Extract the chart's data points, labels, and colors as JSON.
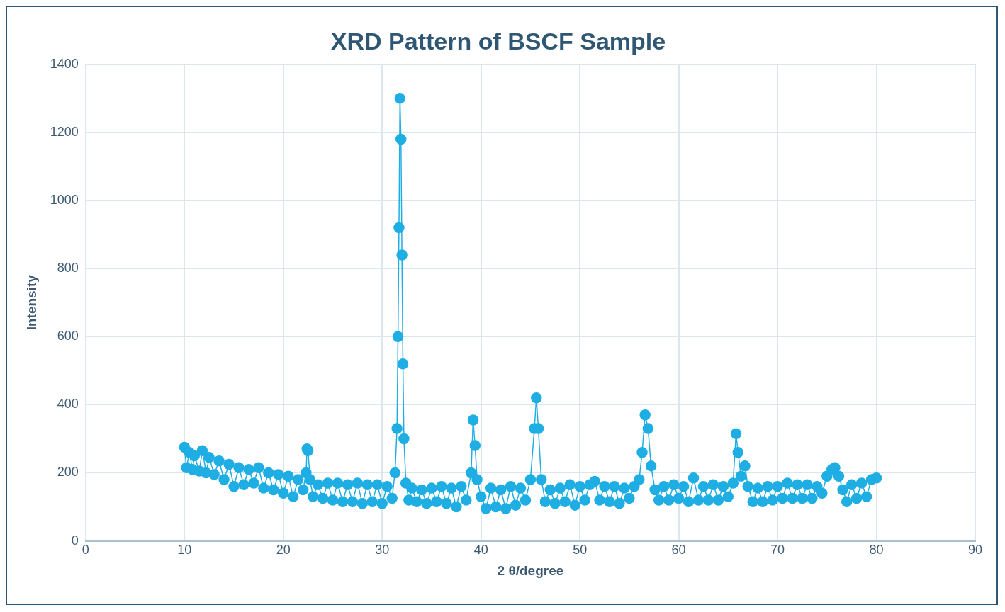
{
  "chart_data": {
    "type": "line",
    "title": "XRD Pattern of BSCF Sample",
    "xlabel": "2 θ/degree",
    "ylabel": "Intensity",
    "xlim": [
      0,
      90
    ],
    "xticks": [
      0,
      10,
      20,
      30,
      40,
      50,
      60,
      70,
      80,
      90
    ],
    "ylim": [
      0,
      1400
    ],
    "yticks": [
      0,
      200,
      400,
      600,
      800,
      1000,
      1200,
      1400
    ],
    "grid": true,
    "legend": false,
    "marker": "circle",
    "line_style": "solid",
    "x": [
      10,
      10.2,
      10.5,
      10.8,
      11,
      11.5,
      11.8,
      12.2,
      12.5,
      13,
      13.5,
      14,
      14.5,
      15,
      15.5,
      16,
      16.5,
      17,
      17.5,
      18,
      18.5,
      19,
      19.5,
      20,
      20.5,
      21,
      21.5,
      22,
      22.3,
      22.4,
      22.5,
      22.7,
      23,
      23.5,
      24,
      24.5,
      25,
      25.5,
      26,
      26.5,
      27,
      27.5,
      28,
      28.5,
      29,
      29.5,
      30,
      30.5,
      31,
      31.3,
      31.5,
      31.6,
      31.7,
      31.8,
      31.9,
      32,
      32.1,
      32.2,
      32.4,
      32.7,
      33,
      33.5,
      34,
      34.5,
      35,
      35.5,
      36,
      36.5,
      37,
      37.5,
      38,
      38.5,
      39,
      39.2,
      39.4,
      39.6,
      40,
      40.5,
      41,
      41.5,
      42,
      42.5,
      43,
      43.5,
      44,
      44.5,
      45,
      45.4,
      45.6,
      45.8,
      46.1,
      46.5,
      47,
      47.5,
      48,
      48.5,
      49,
      49.5,
      50,
      50.5,
      51,
      51.5,
      52,
      52.5,
      53,
      53.5,
      54,
      54.5,
      55,
      55.5,
      56,
      56.3,
      56.6,
      56.9,
      57.2,
      57.6,
      58,
      58.5,
      59,
      59.5,
      60,
      60.5,
      61,
      61.5,
      62,
      62.5,
      63,
      63.5,
      64,
      64.5,
      65,
      65.5,
      65.8,
      66,
      66.3,
      66.7,
      67,
      67.5,
      68,
      68.5,
      69,
      69.5,
      70,
      70.5,
      71,
      71.5,
      72,
      72.5,
      73,
      73.5,
      74,
      74.5,
      75,
      75.5,
      75.8,
      76.2,
      76.6,
      77,
      77.5,
      78,
      78.5,
      79,
      79.5,
      80
    ],
    "series": [
      {
        "color": "#1eaee4",
        "values": [
          275,
          215,
          260,
          210,
          250,
          205,
          265,
          200,
          245,
          195,
          235,
          180,
          225,
          160,
          215,
          165,
          210,
          170,
          215,
          155,
          200,
          150,
          195,
          140,
          190,
          130,
          180,
          150,
          200,
          270,
          265,
          180,
          130,
          165,
          125,
          170,
          120,
          170,
          115,
          165,
          115,
          170,
          110,
          165,
          115,
          165,
          110,
          160,
          125,
          200,
          330,
          600,
          920,
          1300,
          1180,
          840,
          520,
          300,
          170,
          120,
          155,
          115,
          150,
          110,
          155,
          115,
          160,
          110,
          155,
          100,
          160,
          120,
          200,
          355,
          280,
          180,
          130,
          95,
          155,
          100,
          150,
          95,
          160,
          105,
          155,
          120,
          180,
          330,
          420,
          330,
          180,
          115,
          150,
          110,
          155,
          115,
          165,
          105,
          160,
          120,
          165,
          175,
          120,
          160,
          115,
          160,
          110,
          155,
          125,
          160,
          180,
          260,
          370,
          330,
          220,
          150,
          120,
          160,
          120,
          165,
          125,
          160,
          115,
          185,
          120,
          160,
          120,
          165,
          120,
          160,
          130,
          170,
          315,
          260,
          190,
          220,
          160,
          115,
          155,
          115,
          160,
          120,
          160,
          125,
          170,
          125,
          165,
          125,
          165,
          125,
          160,
          140,
          190,
          210,
          215,
          190,
          150,
          115,
          165,
          125,
          170,
          130,
          180,
          185
        ]
      }
    ]
  }
}
